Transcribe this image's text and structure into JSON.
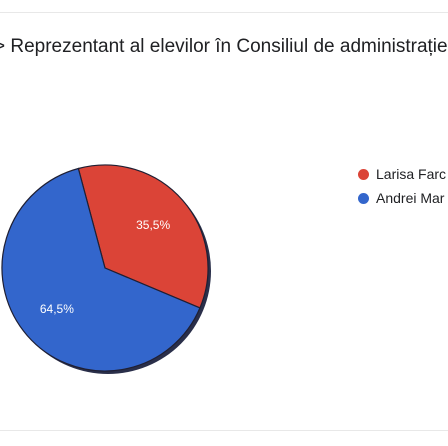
{
  "question": {
    "title": "> Reprezentant al elevilor în Consiliul de administrație"
  },
  "chart_data": {
    "type": "pie",
    "title": "",
    "series": [
      {
        "name": "Larisa Farc",
        "value": 35.5,
        "label": "35,5%",
        "color": "#db4437"
      },
      {
        "name": "Andrei Mar",
        "value": 64.5,
        "label": "64,5%",
        "color": "#3366cc"
      }
    ],
    "legend_position": "right"
  }
}
